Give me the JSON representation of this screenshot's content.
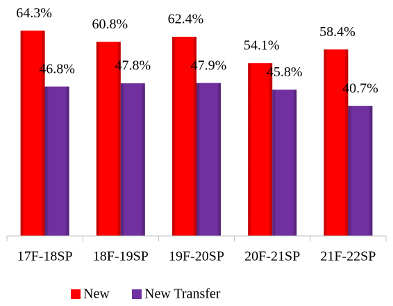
{
  "chart_data": {
    "type": "bar",
    "categories": [
      "17F-18SP",
      "18F-19SP",
      "19F-20SP",
      "20F-21SP",
      "21F-22SP"
    ],
    "series": [
      {
        "name": "New",
        "color": "#ff0000",
        "values": [
          64.3,
          60.8,
          62.4,
          54.1,
          58.4
        ],
        "value_labels": [
          "64.3%",
          "60.8%",
          "62.4%",
          "54.1%",
          "58.4%"
        ]
      },
      {
        "name": "New Transfer",
        "color": "#7030a0",
        "values": [
          46.8,
          47.8,
          47.9,
          45.8,
          40.7
        ],
        "value_labels": [
          "46.8%",
          "47.8%",
          "47.9%",
          "45.8%",
          "40.7%"
        ]
      }
    ],
    "ylim": [
      0,
      70
    ],
    "legend": "bottom"
  }
}
